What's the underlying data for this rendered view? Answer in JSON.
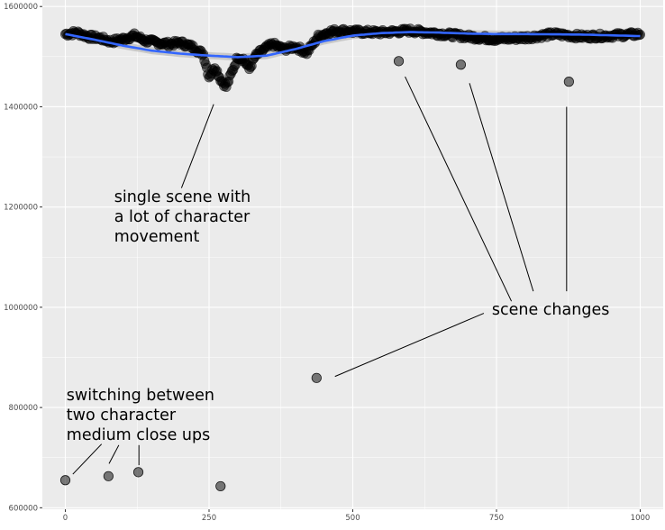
{
  "chart_data": {
    "type": "scatter",
    "title": "",
    "xlabel": "",
    "ylabel": "",
    "xlim": [
      -40,
      1040
    ],
    "ylim": [
      597000,
      1613000
    ],
    "x_ticks": [
      0,
      250,
      500,
      750,
      1000
    ],
    "x_tick_labels": [
      "0",
      "250",
      "500",
      "750",
      "1000"
    ],
    "y_ticks": [
      600000,
      800000,
      1000000,
      1200000,
      1400000,
      1600000
    ],
    "y_tick_labels": [
      "600000",
      "800000",
      "1000000",
      "1200000",
      "1400000",
      "1600000"
    ],
    "grid": true,
    "colors": {
      "panel": "#ebebeb",
      "grid_major": "#ffffff",
      "points": "#000000",
      "smooth_line": "#3366ff",
      "smooth_band": "#bfbfbf"
    },
    "outliers": [
      {
        "x": 0,
        "y": 655000
      },
      {
        "x": 75,
        "y": 663000
      },
      {
        "x": 127,
        "y": 671000
      },
      {
        "x": 270,
        "y": 643000
      },
      {
        "x": 437,
        "y": 859000
      },
      {
        "x": 580,
        "y": 1491000
      },
      {
        "x": 688,
        "y": 1484000
      },
      {
        "x": 876,
        "y": 1450000
      }
    ],
    "dense_series_anchors": {
      "x": [
        0,
        20,
        40,
        60,
        80,
        100,
        120,
        140,
        160,
        180,
        200,
        220,
        240,
        250,
        260,
        270,
        280,
        290,
        300,
        310,
        320,
        330,
        340,
        360,
        380,
        400,
        420,
        440,
        460,
        480,
        500,
        550,
        600,
        650,
        700,
        750,
        800,
        850,
        900,
        950,
        1000
      ],
      "y": [
        1545000,
        1548000,
        1540000,
        1537000,
        1530000,
        1535000,
        1542000,
        1532000,
        1528000,
        1525000,
        1528000,
        1520000,
        1505000,
        1460000,
        1480000,
        1455000,
        1440000,
        1470000,
        1500000,
        1495000,
        1475000,
        1500000,
        1510000,
        1525000,
        1515000,
        1520000,
        1508000,
        1540000,
        1550000,
        1552000,
        1550000,
        1548000,
        1552000,
        1546000,
        1540000,
        1535000,
        1538000,
        1545000,
        1540000,
        1542000,
        1545000
      ]
    },
    "smooth_fit": {
      "x": [
        0,
        50,
        100,
        150,
        200,
        250,
        300,
        350,
        400,
        450,
        500,
        550,
        600,
        650,
        700,
        750,
        800,
        850,
        900,
        950,
        1000
      ],
      "y": [
        1545000,
        1534000,
        1522000,
        1512000,
        1506000,
        1502000,
        1499000,
        1502000,
        1515000,
        1531000,
        1542000,
        1547000,
        1549000,
        1548000,
        1546000,
        1545000,
        1545000,
        1544500,
        1544000,
        1542500,
        1541000
      ]
    },
    "annotations": [
      {
        "lines": [
          "single scene with",
          "a lot of character",
          "movement"
        ],
        "text_at": {
          "x": 85,
          "y": 1210000
        },
        "pointers": [
          {
            "from": {
              "x": 202,
              "y": 1238000
            },
            "to": {
              "x": 258,
              "y": 1405000
            }
          }
        ]
      },
      {
        "lines": [
          "scene changes"
        ],
        "text_at": {
          "x": 742,
          "y": 985000
        },
        "pointers": [
          {
            "from": {
              "x": 728,
              "y": 988000
            },
            "to": {
              "x": 469,
              "y": 862000
            }
          },
          {
            "from": {
              "x": 776,
              "y": 1012000
            },
            "to": {
              "x": 591,
              "y": 1460000
            }
          },
          {
            "from": {
              "x": 814,
              "y": 1032000
            },
            "to": {
              "x": 703,
              "y": 1447000
            }
          },
          {
            "from": {
              "x": 872,
              "y": 1032000
            },
            "to": {
              "x": 872,
              "y": 1400000
            }
          }
        ]
      },
      {
        "lines": [
          "switching between",
          "two character",
          "medium close ups"
        ],
        "text_at": {
          "x": 2,
          "y": 815000
        },
        "pointers": [
          {
            "from": {
              "x": 13,
              "y": 667000
            },
            "to": {
              "x": 63,
              "y": 727000
            }
          },
          {
            "from": {
              "x": 76,
              "y": 688000
            },
            "to": {
              "x": 93,
              "y": 725000
            }
          },
          {
            "from": {
              "x": 128,
              "y": 685000
            },
            "to": {
              "x": 128,
              "y": 725000
            }
          }
        ]
      }
    ]
  }
}
